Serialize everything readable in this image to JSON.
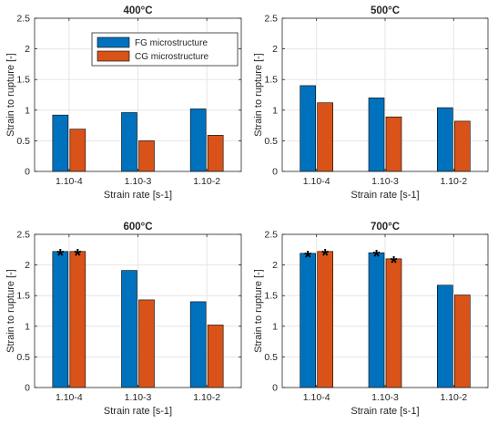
{
  "colors": {
    "fg": "#0072BD",
    "cg": "#D95319",
    "grid": "#e6e6e6",
    "axis": "#262626"
  },
  "legend": {
    "fg_label": "FG microstructure",
    "cg_label": "CG microstructure",
    "location": "panel 1, top-right"
  },
  "chart_data": [
    {
      "type": "bar",
      "title": "400°C",
      "xlabel": "Strain rate [s-1]",
      "ylabel": "Strain to rupture [-]",
      "categories": [
        "1.10-4",
        "1.10-3",
        "1.10-2"
      ],
      "series": [
        {
          "name": "FG microstructure",
          "values": [
            0.92,
            0.96,
            1.02
          ],
          "stars": [
            false,
            false,
            false
          ]
        },
        {
          "name": "CG microstructure",
          "values": [
            0.69,
            0.5,
            0.59
          ],
          "stars": [
            false,
            false,
            false
          ]
        }
      ],
      "ylim": [
        0,
        2.5
      ],
      "yticks": [
        "0",
        "0.5",
        "1",
        "1.5",
        "2",
        "2.5"
      ],
      "grid": true,
      "legend": true
    },
    {
      "type": "bar",
      "title": "500°C",
      "xlabel": "Strain rate [s-1]",
      "ylabel": "Strain to rupture [-]",
      "categories": [
        "1.10-4",
        "1.10-3",
        "1.10-2"
      ],
      "series": [
        {
          "name": "FG microstructure",
          "values": [
            1.4,
            1.2,
            1.04
          ],
          "stars": [
            false,
            false,
            false
          ]
        },
        {
          "name": "CG microstructure",
          "values": [
            1.12,
            0.89,
            0.82
          ],
          "stars": [
            false,
            false,
            false
          ]
        }
      ],
      "ylim": [
        0,
        2.5
      ],
      "yticks": [
        "0",
        "0.5",
        "1",
        "1.5",
        "2",
        "2.5"
      ],
      "grid": true,
      "legend": false
    },
    {
      "type": "bar",
      "title": "600°C",
      "xlabel": "Strain rate [s-1]",
      "ylabel": "Strain to rupture [-]",
      "categories": [
        "1.10-4",
        "1.10-3",
        "1.10-2"
      ],
      "series": [
        {
          "name": "FG microstructure",
          "values": [
            2.22,
            1.91,
            1.4
          ],
          "stars": [
            true,
            false,
            false
          ]
        },
        {
          "name": "CG microstructure",
          "values": [
            2.22,
            1.43,
            1.02
          ],
          "stars": [
            true,
            false,
            false
          ]
        }
      ],
      "ylim": [
        0,
        2.5
      ],
      "yticks": [
        "0",
        "0.5",
        "1",
        "1.5",
        "2",
        "2.5"
      ],
      "grid": true,
      "legend": false
    },
    {
      "type": "bar",
      "title": "700°C",
      "xlabel": "Strain rate [s-1]",
      "ylabel": "Strain to rupture [-]",
      "categories": [
        "1.10-4",
        "1.10-3",
        "1.10-2"
      ],
      "series": [
        {
          "name": "FG microstructure",
          "values": [
            2.19,
            2.2,
            1.67
          ],
          "stars": [
            true,
            true,
            false
          ]
        },
        {
          "name": "CG microstructure",
          "values": [
            2.22,
            2.1,
            1.51
          ],
          "stars": [
            true,
            true,
            false
          ]
        }
      ],
      "ylim": [
        0,
        2.5
      ],
      "yticks": [
        "0",
        "0.5",
        "1",
        "1.5",
        "2",
        "2.5"
      ],
      "grid": true,
      "legend": false
    }
  ],
  "star_symbol": "*"
}
